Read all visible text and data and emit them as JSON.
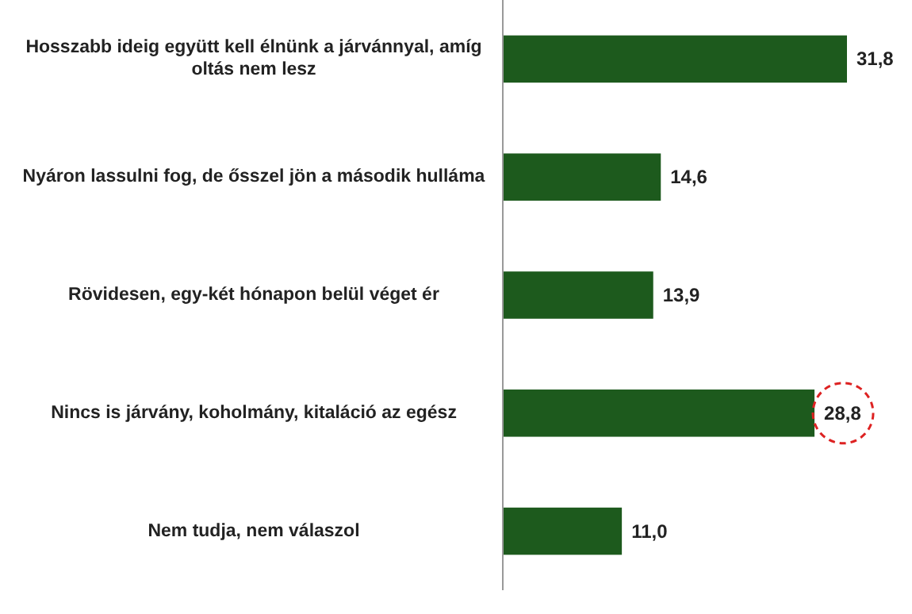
{
  "chart_data": {
    "type": "bar",
    "orientation": "horizontal",
    "categories": [
      "Hosszabb ideig együtt kell élnünk a járvánnyal, amíg oltás nem lesz",
      "Nyáron lassulni fog, de ősszel jön a második hulláma",
      "Rövidesen, egy-két hónapon belül véget ér",
      "Nincs is járvány, koholmány, kitaláció az egész",
      "Nem tudja, nem válaszol"
    ],
    "values": [
      31.8,
      14.6,
      13.9,
      28.8,
      11.0
    ],
    "value_labels": [
      "31,8",
      "14,6",
      "13,9",
      "28,8",
      "11,0"
    ],
    "color": "#1d5a1d"
  }
}
